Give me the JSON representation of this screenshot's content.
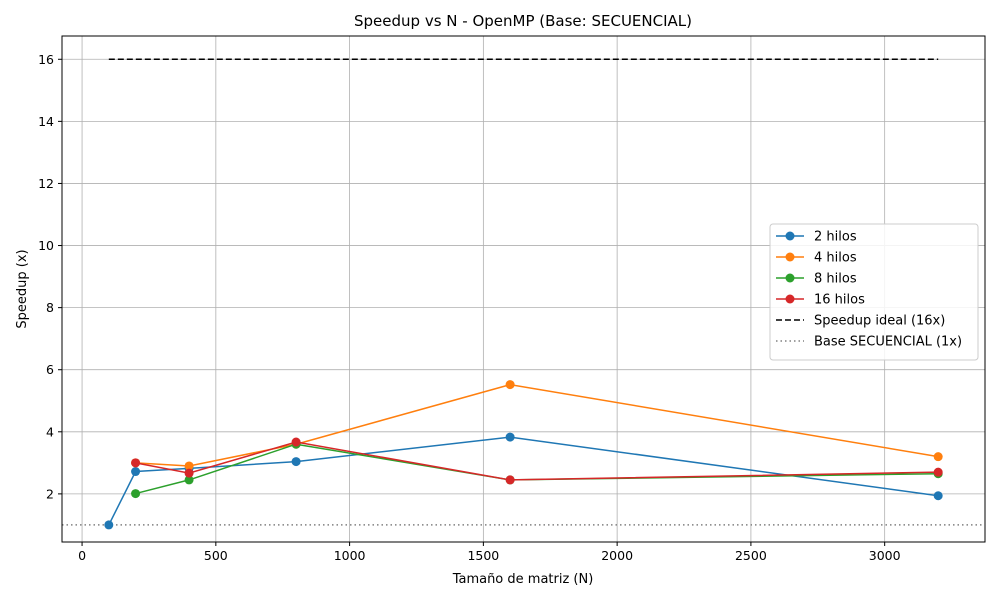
{
  "chart_data": {
    "type": "line",
    "title": "Speedup vs N - OpenMP (Base: SECUENCIAL)",
    "xlabel": "Tamaño de matriz (N)",
    "ylabel": "Speedup (x)",
    "xlim": [
      -75,
      3375
    ],
    "ylim": [
      0.45,
      16.75
    ],
    "xticks": [
      0,
      500,
      1000,
      1500,
      2000,
      2500,
      3000
    ],
    "yticks": [
      2,
      4,
      6,
      8,
      10,
      12,
      14,
      16
    ],
    "grid": true,
    "legend_position": "center-right",
    "series": [
      {
        "name": "2 hilos",
        "color": "#1f77b4",
        "x": [
          100,
          200,
          400,
          800,
          1600,
          3200
        ],
        "y": [
          1.0,
          2.72,
          2.82,
          3.04,
          3.83,
          1.94
        ]
      },
      {
        "name": "4 hilos",
        "color": "#ff7f0e",
        "x": [
          200,
          400,
          800,
          1600,
          3200
        ],
        "y": [
          3.0,
          2.9,
          3.6,
          5.52,
          3.2
        ]
      },
      {
        "name": "8 hilos",
        "color": "#2ca02c",
        "x": [
          200,
          400,
          800,
          1600,
          3200
        ],
        "y": [
          2.01,
          2.45,
          3.6,
          2.45,
          2.65
        ]
      },
      {
        "name": "16 hilos",
        "color": "#d62728",
        "x": [
          200,
          400,
          800,
          1600,
          3200
        ],
        "y": [
          3.0,
          2.67,
          3.67,
          2.45,
          2.7
        ]
      }
    ],
    "reference_lines": [
      {
        "name": "Speedup ideal (16x)",
        "style": "dashed",
        "color": "#000000",
        "x": [
          100,
          3200
        ],
        "y": [
          16,
          16
        ]
      },
      {
        "name": "Base SECUENCIAL (1x)",
        "style": "dotted",
        "color": "#808080",
        "y": 1
      }
    ]
  }
}
